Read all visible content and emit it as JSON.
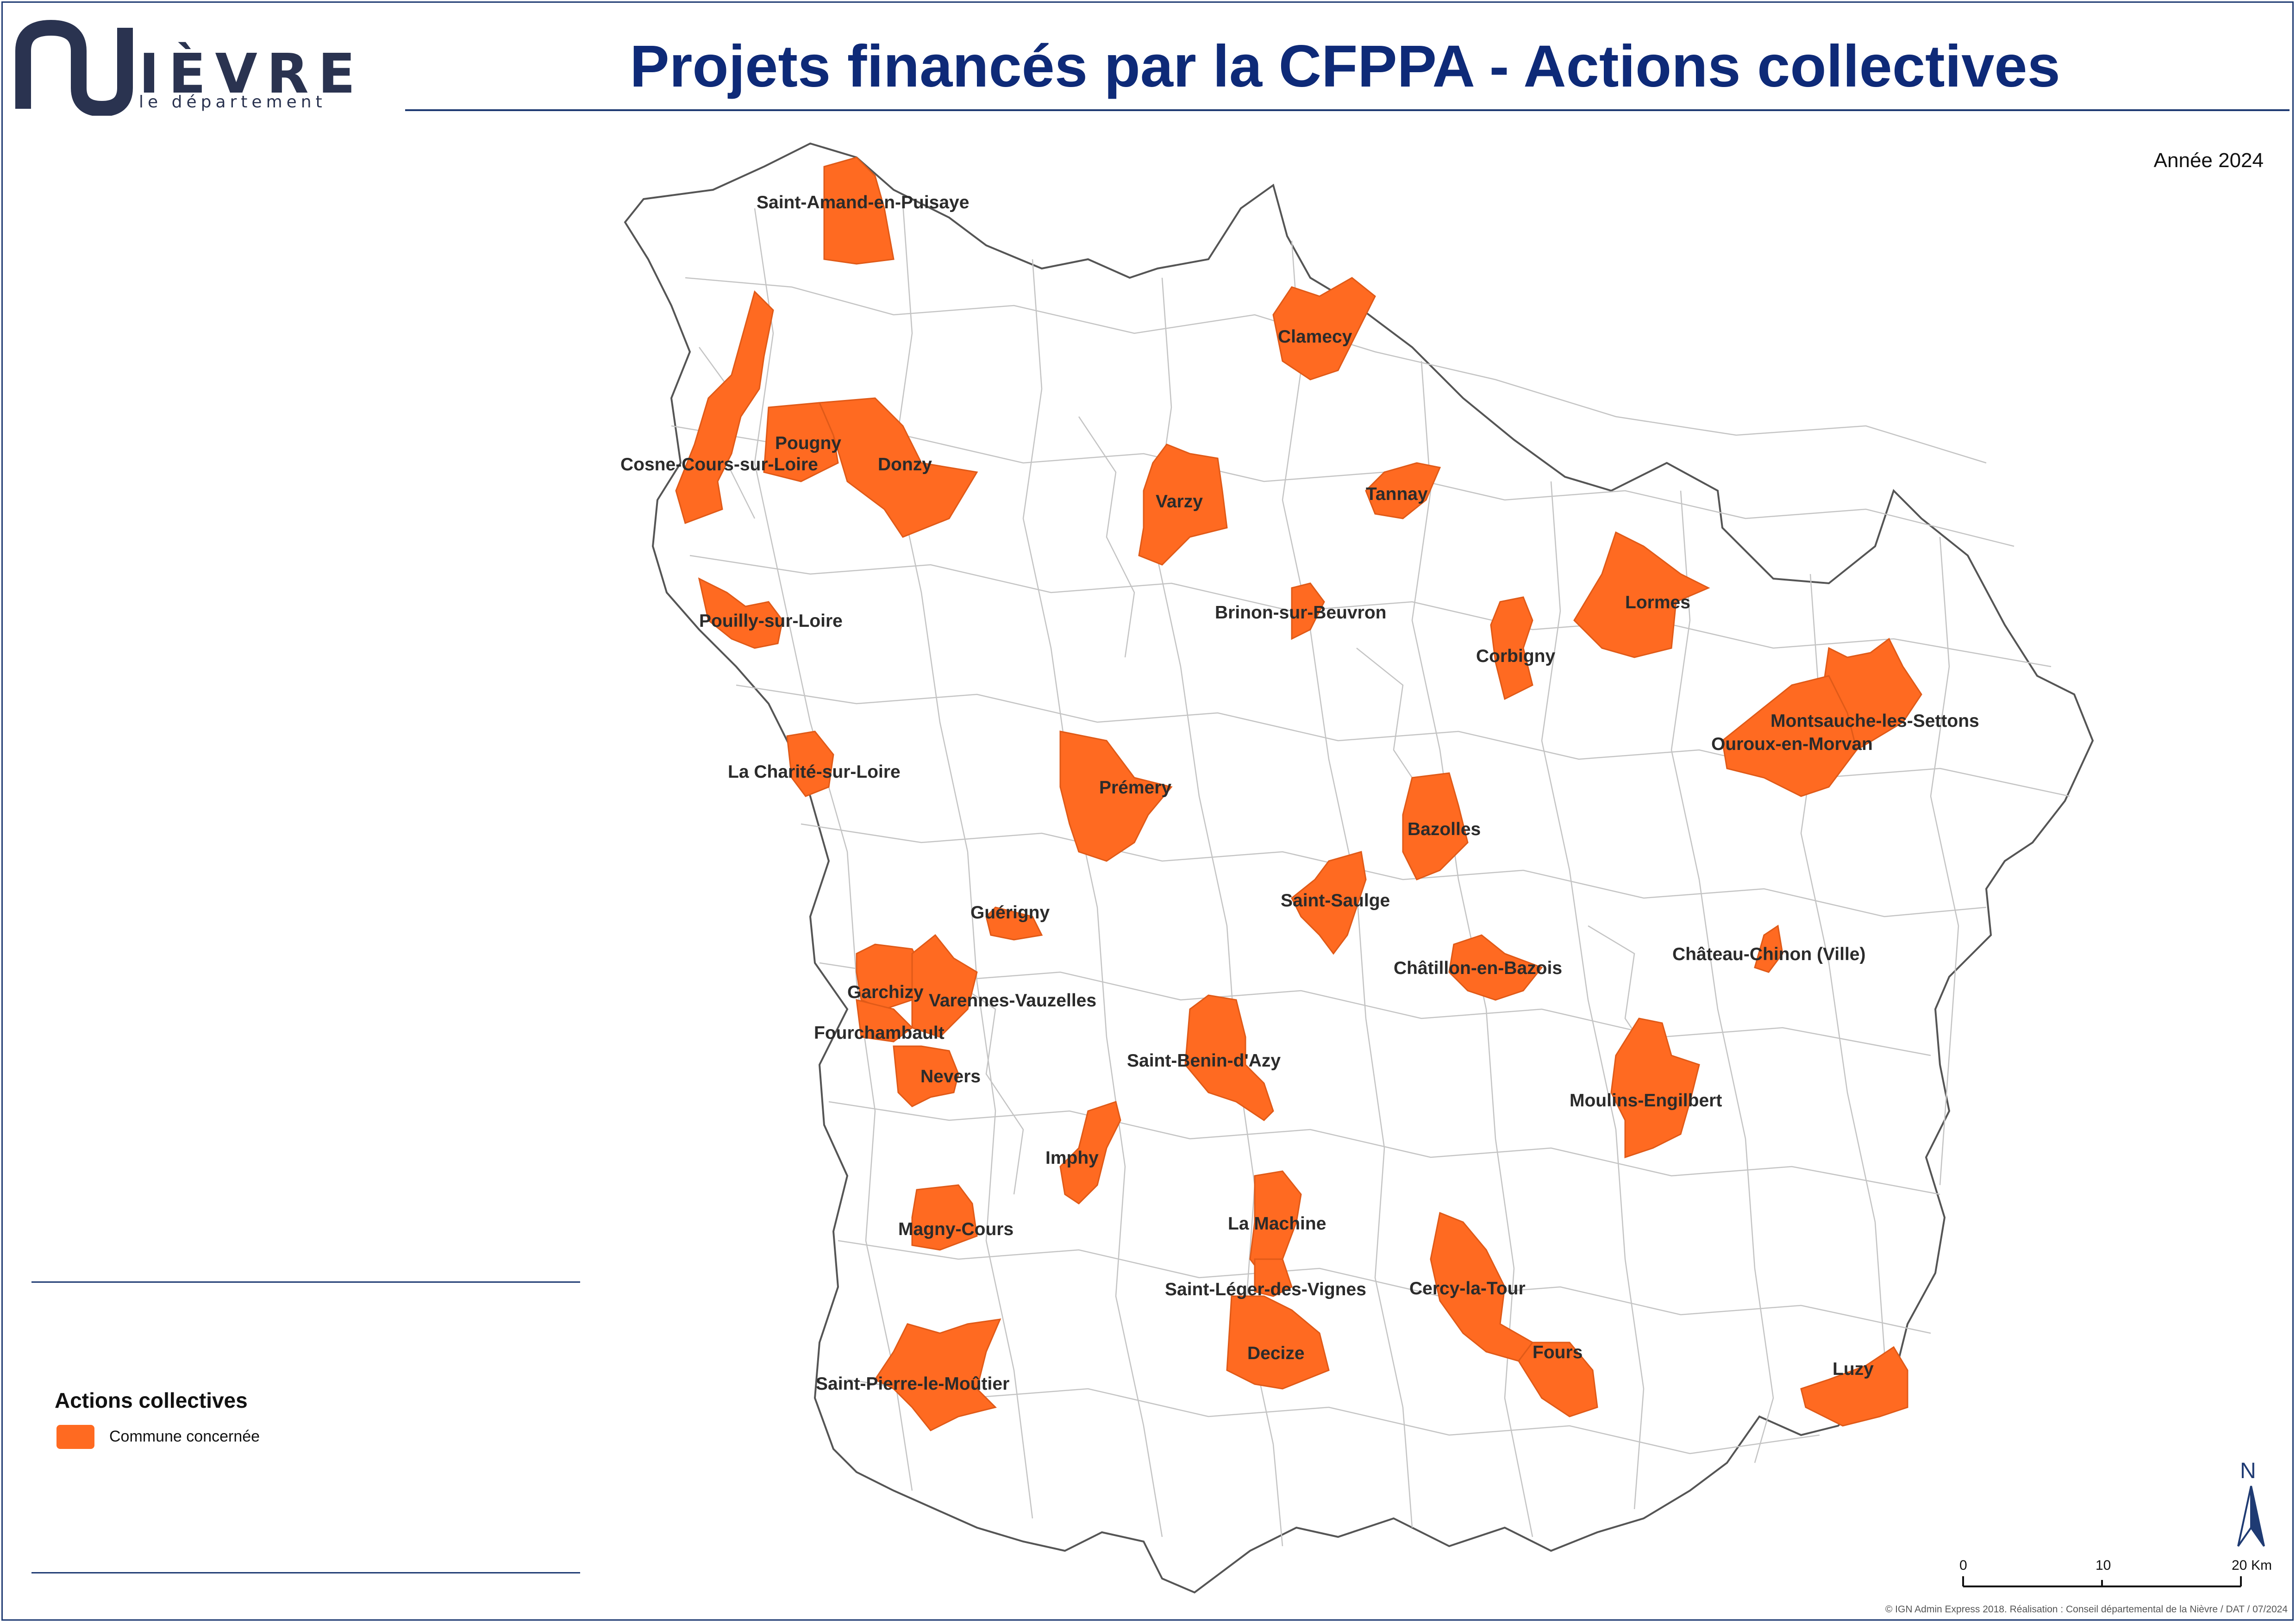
{
  "colors": {
    "accent": "#ff6a21",
    "brand": "#1f3b73",
    "title": "#0e2a78",
    "boundary": "#b8b8b8"
  },
  "logo": {
    "wordmark": "IÈVRE",
    "subtitle": "le département"
  },
  "header": {
    "title": "Projets financés par la CFPPA - Actions collectives",
    "year": "Année 2024"
  },
  "map": {
    "communes": [
      "Saint-Amand-en-Puisaye",
      "Clamecy",
      "Pougny",
      "Cosne-Cours-sur-Loire",
      "Donzy",
      "Varzy",
      "Tannay",
      "Brinon-sur-Beuvron",
      "Lormes",
      "Corbigny",
      "Pouilly-sur-Loire",
      "Montsauche-les-Settons",
      "Ouroux-en-Morvan",
      "La Charité-sur-Loire",
      "Prémery",
      "Bazolles",
      "Saint-Saulge",
      "Guérigny",
      "Château-Chinon (Ville)",
      "Châtillon-en-Bazois",
      "Garchizy",
      "Varennes-Vauzelles",
      "Fourchambault",
      "Saint-Benin-d'Azy",
      "Nevers",
      "Moulins-Engilbert",
      "Imphy",
      "Magny-Cours",
      "La Machine",
      "Saint-Léger-des-Vignes",
      "Cercy-la-Tour",
      "Decize",
      "Fours",
      "Luzy",
      "Saint-Pierre-le-Moûtier"
    ]
  },
  "legend": {
    "title": "Actions collectives",
    "item_label": "Commune concernée"
  },
  "north_arrow": {
    "letter": "N"
  },
  "scale_bar": {
    "ticks": [
      "0",
      "10",
      "20"
    ],
    "unit": "Km"
  },
  "credits": "© IGN Admin Express 2018. Réalisation : Conseil départemental de la Nièvre / DAT / 07/2024"
}
